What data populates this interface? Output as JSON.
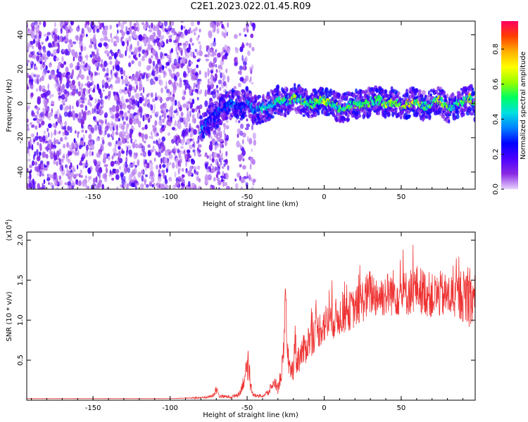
{
  "title": "C2E1.2023.022.01.45.R09",
  "chart_data": [
    {
      "type": "heatmap",
      "title": "",
      "xlabel": "Height of straight line (km)",
      "ylabel": "Frequency (Hz)",
      "xlim": [
        -193,
        98
      ],
      "ylim": [
        -50,
        48
      ],
      "xticks": [
        -150,
        -100,
        -50,
        0,
        50
      ],
      "yticks": [
        -40,
        -20,
        0,
        20,
        40
      ],
      "colorbar": {
        "label": "Normalized spectral amplitude",
        "range": [
          0.0,
          0.96
        ],
        "ticks": [
          "0.0",
          "0.2",
          "0.4",
          "0.6",
          "0.8"
        ],
        "colors": [
          "#e8d4ff",
          "#8a2be2",
          "#4b00ff",
          "#0000ff",
          "#0080ff",
          "#00e0e0",
          "#00ff60",
          "#9aff00",
          "#ffff00",
          "#ffb000",
          "#ff4000",
          "#ff0060"
        ]
      },
      "noise_region_x": [
        -193,
        -45
      ],
      "gap_regions_x": [
        [
          -80,
          -77
        ],
        [
          -62,
          -58
        ]
      ],
      "ridge": {
        "x": [
          -80,
          -75,
          -70,
          -65,
          -60,
          -55,
          -50,
          -45,
          -40,
          -35,
          -30,
          -25,
          -20,
          -15,
          -10,
          -5,
          0,
          5,
          10,
          15,
          20,
          25,
          30,
          35,
          40,
          45,
          50,
          55,
          60,
          65,
          70,
          75,
          80,
          85,
          90,
          95,
          98
        ],
        "y": [
          -16,
          -10,
          -6,
          -3,
          0,
          -2,
          1,
          -4,
          -3,
          -1,
          2,
          1,
          3,
          2,
          -1,
          1,
          2,
          0,
          -3,
          -2,
          0,
          -1,
          1,
          2,
          0,
          1,
          -1,
          0,
          1,
          -2,
          0,
          2,
          -3,
          -1,
          1,
          3,
          -2
        ],
        "amplitude": [
          0.45,
          0.25,
          0.3,
          0.35,
          0.35,
          0.3,
          0.35,
          0.4,
          0.45,
          0.5,
          0.55,
          0.55,
          0.6,
          0.55,
          0.55,
          0.6,
          0.65,
          0.6,
          0.55,
          0.55,
          0.6,
          0.55,
          0.6,
          0.6,
          0.65,
          0.6,
          0.65,
          0.75,
          0.65,
          0.55,
          0.6,
          0.65,
          0.55,
          0.55,
          0.6,
          0.7,
          0.5
        ]
      }
    },
    {
      "type": "line",
      "title": "",
      "xlabel": "Height of straight line (km)",
      "ylabel": "SNR (10 * v/v)",
      "y_scale_note": "(x10",
      "y_scale_exp": "4",
      "y_scale_close": ")",
      "xlim": [
        -193,
        98
      ],
      "ylim": [
        0,
        2.1
      ],
      "xticks": [
        -150,
        -100,
        -50,
        0,
        50
      ],
      "yticks": [
        "0.5",
        "1.0",
        "1.5",
        "2.0"
      ],
      "ytick_values": [
        0.5,
        1.0,
        1.5,
        2.0
      ],
      "color": "#ee3333",
      "series": [
        {
          "x": [
            -193,
            -150,
            -100,
            -80,
            -72,
            -70,
            -68,
            -60,
            -55,
            -52,
            -50,
            -49,
            -48,
            -46,
            -44,
            -40,
            -36,
            -34,
            -32,
            -30,
            -28,
            -26,
            -25,
            -24,
            -22,
            -20,
            -19,
            -18,
            -16,
            -14,
            -12,
            -10,
            -8,
            -5,
            0,
            5,
            10,
            15,
            20,
            25,
            28,
            30,
            35,
            40,
            45,
            50,
            55,
            60,
            65,
            70,
            75,
            80,
            85,
            90,
            93,
            95,
            98
          ],
          "y": [
            0.02,
            0.02,
            0.02,
            0.03,
            0.05,
            0.14,
            0.05,
            0.04,
            0.08,
            0.25,
            0.4,
            0.35,
            0.2,
            0.08,
            0.05,
            0.05,
            0.1,
            0.18,
            0.22,
            0.12,
            0.3,
            0.65,
            1.45,
            0.5,
            0.35,
            0.4,
            0.8,
            0.5,
            0.55,
            0.6,
            0.65,
            0.75,
            0.8,
            0.85,
            0.95,
            1.0,
            1.05,
            1.1,
            1.15,
            1.25,
            1.3,
            1.35,
            1.3,
            1.32,
            1.35,
            1.32,
            1.35,
            1.4,
            1.35,
            1.3,
            1.32,
            1.3,
            1.3,
            1.28,
            1.35,
            1.25,
            1.3
          ],
          "envelope": [
            0.0,
            0.0,
            0.0,
            0.01,
            0.02,
            0.06,
            0.02,
            0.02,
            0.03,
            0.1,
            0.15,
            0.12,
            0.08,
            0.03,
            0.02,
            0.02,
            0.05,
            0.06,
            0.06,
            0.05,
            0.1,
            0.2,
            0.2,
            0.15,
            0.1,
            0.15,
            0.25,
            0.2,
            0.2,
            0.2,
            0.2,
            0.22,
            0.25,
            0.22,
            0.25,
            0.25,
            0.25,
            0.25,
            0.25,
            0.28,
            0.3,
            0.3,
            0.28,
            0.28,
            0.3,
            0.28,
            0.3,
            0.3,
            0.3,
            0.28,
            0.3,
            0.28,
            0.3,
            0.3,
            0.55,
            0.3,
            0.3
          ]
        }
      ]
    }
  ]
}
